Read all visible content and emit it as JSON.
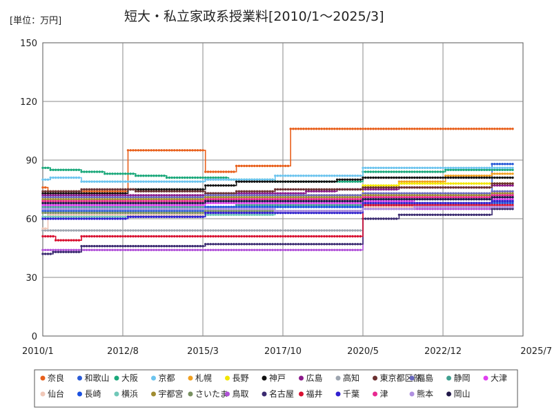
{
  "chart_data": {
    "type": "line",
    "title": "短大・私立家政系授業料[2010/1～2025/3]",
    "unit_label": "[単位：万円]",
    "xlabel": "",
    "ylabel": "",
    "ylim": [
      0,
      150
    ],
    "yticks": [
      "0",
      "30",
      "60",
      "90",
      "120",
      "150"
    ],
    "ytick_values": [
      0,
      30,
      60,
      90,
      120,
      150
    ],
    "xlim": [
      2010.0,
      2025.5
    ],
    "xticks": [
      "2010/1",
      "2012/8",
      "2015/3",
      "2017/10",
      "2020/5",
      "2022/12",
      "2025/7"
    ],
    "xtick_values": [
      2010.0,
      2012.583,
      2015.167,
      2017.75,
      2020.333,
      2022.917,
      2025.5
    ],
    "x_end": 2025.167,
    "grid": true,
    "legend_position": "bottom",
    "series": [
      {
        "name": "奈良",
        "color": "#e8601c",
        "steps": [
          [
            2010.0,
            76
          ],
          [
            2010.1,
            74
          ],
          [
            2012.67,
            95
          ],
          [
            2015.17,
            84
          ],
          [
            2016.2,
            87
          ],
          [
            2018.0,
            106
          ]
        ]
      },
      {
        "name": "和歌山",
        "color": "#2a5bd7",
        "steps": [
          [
            2010.0,
            64
          ],
          [
            2020.33,
            70
          ],
          [
            2024.5,
            88
          ]
        ]
      },
      {
        "name": "大阪",
        "color": "#1aa87a",
        "steps": [
          [
            2010.0,
            86
          ],
          [
            2010.2,
            85
          ],
          [
            2011.25,
            84
          ],
          [
            2012.0,
            83
          ],
          [
            2013.0,
            82
          ],
          [
            2014.0,
            81
          ],
          [
            2016.0,
            80
          ],
          [
            2017.5,
            79
          ],
          [
            2019.5,
            79
          ],
          [
            2020.33,
            84
          ],
          [
            2021.5,
            84
          ],
          [
            2023.0,
            85
          ]
        ]
      },
      {
        "name": "京都",
        "color": "#6cc4ee",
        "steps": [
          [
            2010.0,
            80
          ],
          [
            2010.2,
            81
          ],
          [
            2011.25,
            79
          ],
          [
            2015.17,
            80
          ],
          [
            2017.5,
            82
          ],
          [
            2020.33,
            86
          ]
        ]
      },
      {
        "name": "札幌",
        "color": "#f0a020",
        "steps": [
          [
            2010.0,
            68
          ],
          [
            2015.17,
            70
          ],
          [
            2020.33,
            76
          ],
          [
            2021.5,
            79
          ],
          [
            2023.0,
            82
          ],
          [
            2024.5,
            83
          ]
        ]
      },
      {
        "name": "長野",
        "color": "#f2e600",
        "steps": [
          [
            2010.0,
            69
          ],
          [
            2013.0,
            70
          ],
          [
            2015.17,
            71
          ],
          [
            2017.5,
            72
          ],
          [
            2020.33,
            77
          ],
          [
            2021.5,
            78
          ]
        ]
      },
      {
        "name": "神戸",
        "color": "#111111",
        "steps": [
          [
            2010.0,
            73
          ],
          [
            2012.67,
            75
          ],
          [
            2015.17,
            77
          ],
          [
            2016.2,
            79
          ],
          [
            2019.5,
            80
          ],
          [
            2020.33,
            81
          ]
        ]
      },
      {
        "name": "広島",
        "color": "#8b1a8b",
        "steps": [
          [
            2010.0,
            72
          ],
          [
            2015.17,
            73
          ],
          [
            2018.5,
            74
          ],
          [
            2019.5,
            75
          ],
          [
            2021.5,
            76
          ],
          [
            2024.5,
            77
          ]
        ]
      },
      {
        "name": "高知",
        "color": "#9ea6b0",
        "steps": [
          [
            2010.0,
            54
          ],
          [
            2020.33,
            71
          ],
          [
            2023.0,
            72
          ]
        ]
      },
      {
        "name": "東京都区部",
        "color": "#6b3030",
        "steps": [
          [
            2010.0,
            74
          ],
          [
            2011.25,
            75
          ],
          [
            2013.0,
            74
          ],
          [
            2015.17,
            73
          ],
          [
            2016.2,
            74
          ],
          [
            2017.5,
            75
          ],
          [
            2020.33,
            76
          ],
          [
            2024.5,
            78
          ]
        ]
      },
      {
        "name": "福島",
        "color": "#6868c0",
        "steps": [
          [
            2010.0,
            71
          ],
          [
            2015.17,
            72
          ],
          [
            2020.33,
            73
          ],
          [
            2024.5,
            74
          ]
        ]
      },
      {
        "name": "静岡",
        "color": "#40a090",
        "steps": [
          [
            2010.0,
            66
          ],
          [
            2016.2,
            67
          ],
          [
            2020.33,
            70
          ],
          [
            2024.5,
            71
          ]
        ]
      },
      {
        "name": "大津",
        "color": "#e040f0",
        "steps": [
          [
            2010.0,
            67
          ],
          [
            2015.17,
            68
          ],
          [
            2020.33,
            69
          ],
          [
            2022.0,
            70
          ]
        ]
      },
      {
        "name": "仙台",
        "color": "#f0c8b8",
        "steps": [
          [
            2010.0,
            55
          ],
          [
            2010.1,
            62
          ],
          [
            2015.17,
            63
          ],
          [
            2020.33,
            66
          ]
        ]
      },
      {
        "name": "長崎",
        "color": "#1a50e0",
        "steps": [
          [
            2010.0,
            65
          ],
          [
            2015.17,
            66
          ],
          [
            2020.33,
            67
          ],
          [
            2024.5,
            68
          ]
        ]
      },
      {
        "name": "横浜",
        "color": "#70c8b8",
        "steps": [
          [
            2010.0,
            61
          ],
          [
            2015.17,
            62
          ],
          [
            2017.5,
            63
          ],
          [
            2020.33,
            70
          ],
          [
            2024.5,
            72
          ]
        ]
      },
      {
        "name": "宇都宮",
        "color": "#a08c30",
        "steps": [
          [
            2010.0,
            70
          ],
          [
            2015.17,
            71
          ],
          [
            2020.33,
            72
          ],
          [
            2024.5,
            73
          ]
        ]
      },
      {
        "name": "さいたま",
        "color": "#789060",
        "steps": [
          [
            2010.0,
            63
          ],
          [
            2015.17,
            64
          ],
          [
            2020.33,
            68
          ],
          [
            2024.5,
            69
          ]
        ]
      },
      {
        "name": "鳥取",
        "color": "#b050d8",
        "steps": [
          [
            2010.0,
            44
          ],
          [
            2020.33,
            65
          ],
          [
            2024.5,
            66
          ]
        ]
      },
      {
        "name": "名古屋",
        "color": "#3a2a70",
        "steps": [
          [
            2010.0,
            42
          ],
          [
            2010.3,
            43
          ],
          [
            2011.25,
            46
          ],
          [
            2015.17,
            47
          ],
          [
            2020.33,
            60
          ],
          [
            2021.5,
            62
          ],
          [
            2024.5,
            65
          ]
        ]
      },
      {
        "name": "福井",
        "color": "#d81030",
        "steps": [
          [
            2010.0,
            51
          ],
          [
            2010.4,
            49
          ],
          [
            2011.25,
            51
          ],
          [
            2020.33,
            67
          ]
        ]
      },
      {
        "name": "千葉",
        "color": "#3020d0",
        "steps": [
          [
            2010.0,
            60
          ],
          [
            2012.67,
            61
          ],
          [
            2015.17,
            63
          ],
          [
            2020.33,
            68
          ],
          [
            2024.5,
            69
          ]
        ]
      },
      {
        "name": "津",
        "color": "#e82890",
        "steps": [
          [
            2010.0,
            69
          ],
          [
            2015.17,
            70
          ],
          [
            2020.33,
            71
          ],
          [
            2024.5,
            72
          ]
        ]
      },
      {
        "name": "熊本",
        "color": "#b090e0",
        "steps": [
          [
            2010.0,
            65
          ],
          [
            2017.5,
            64
          ],
          [
            2020.33,
            65
          ],
          [
            2022.0,
            66
          ]
        ]
      },
      {
        "name": "岡山",
        "color": "#201848",
        "steps": [
          [
            2010.0,
            68
          ],
          [
            2015.17,
            69
          ],
          [
            2020.33,
            70
          ],
          [
            2024.5,
            71
          ]
        ]
      }
    ]
  }
}
